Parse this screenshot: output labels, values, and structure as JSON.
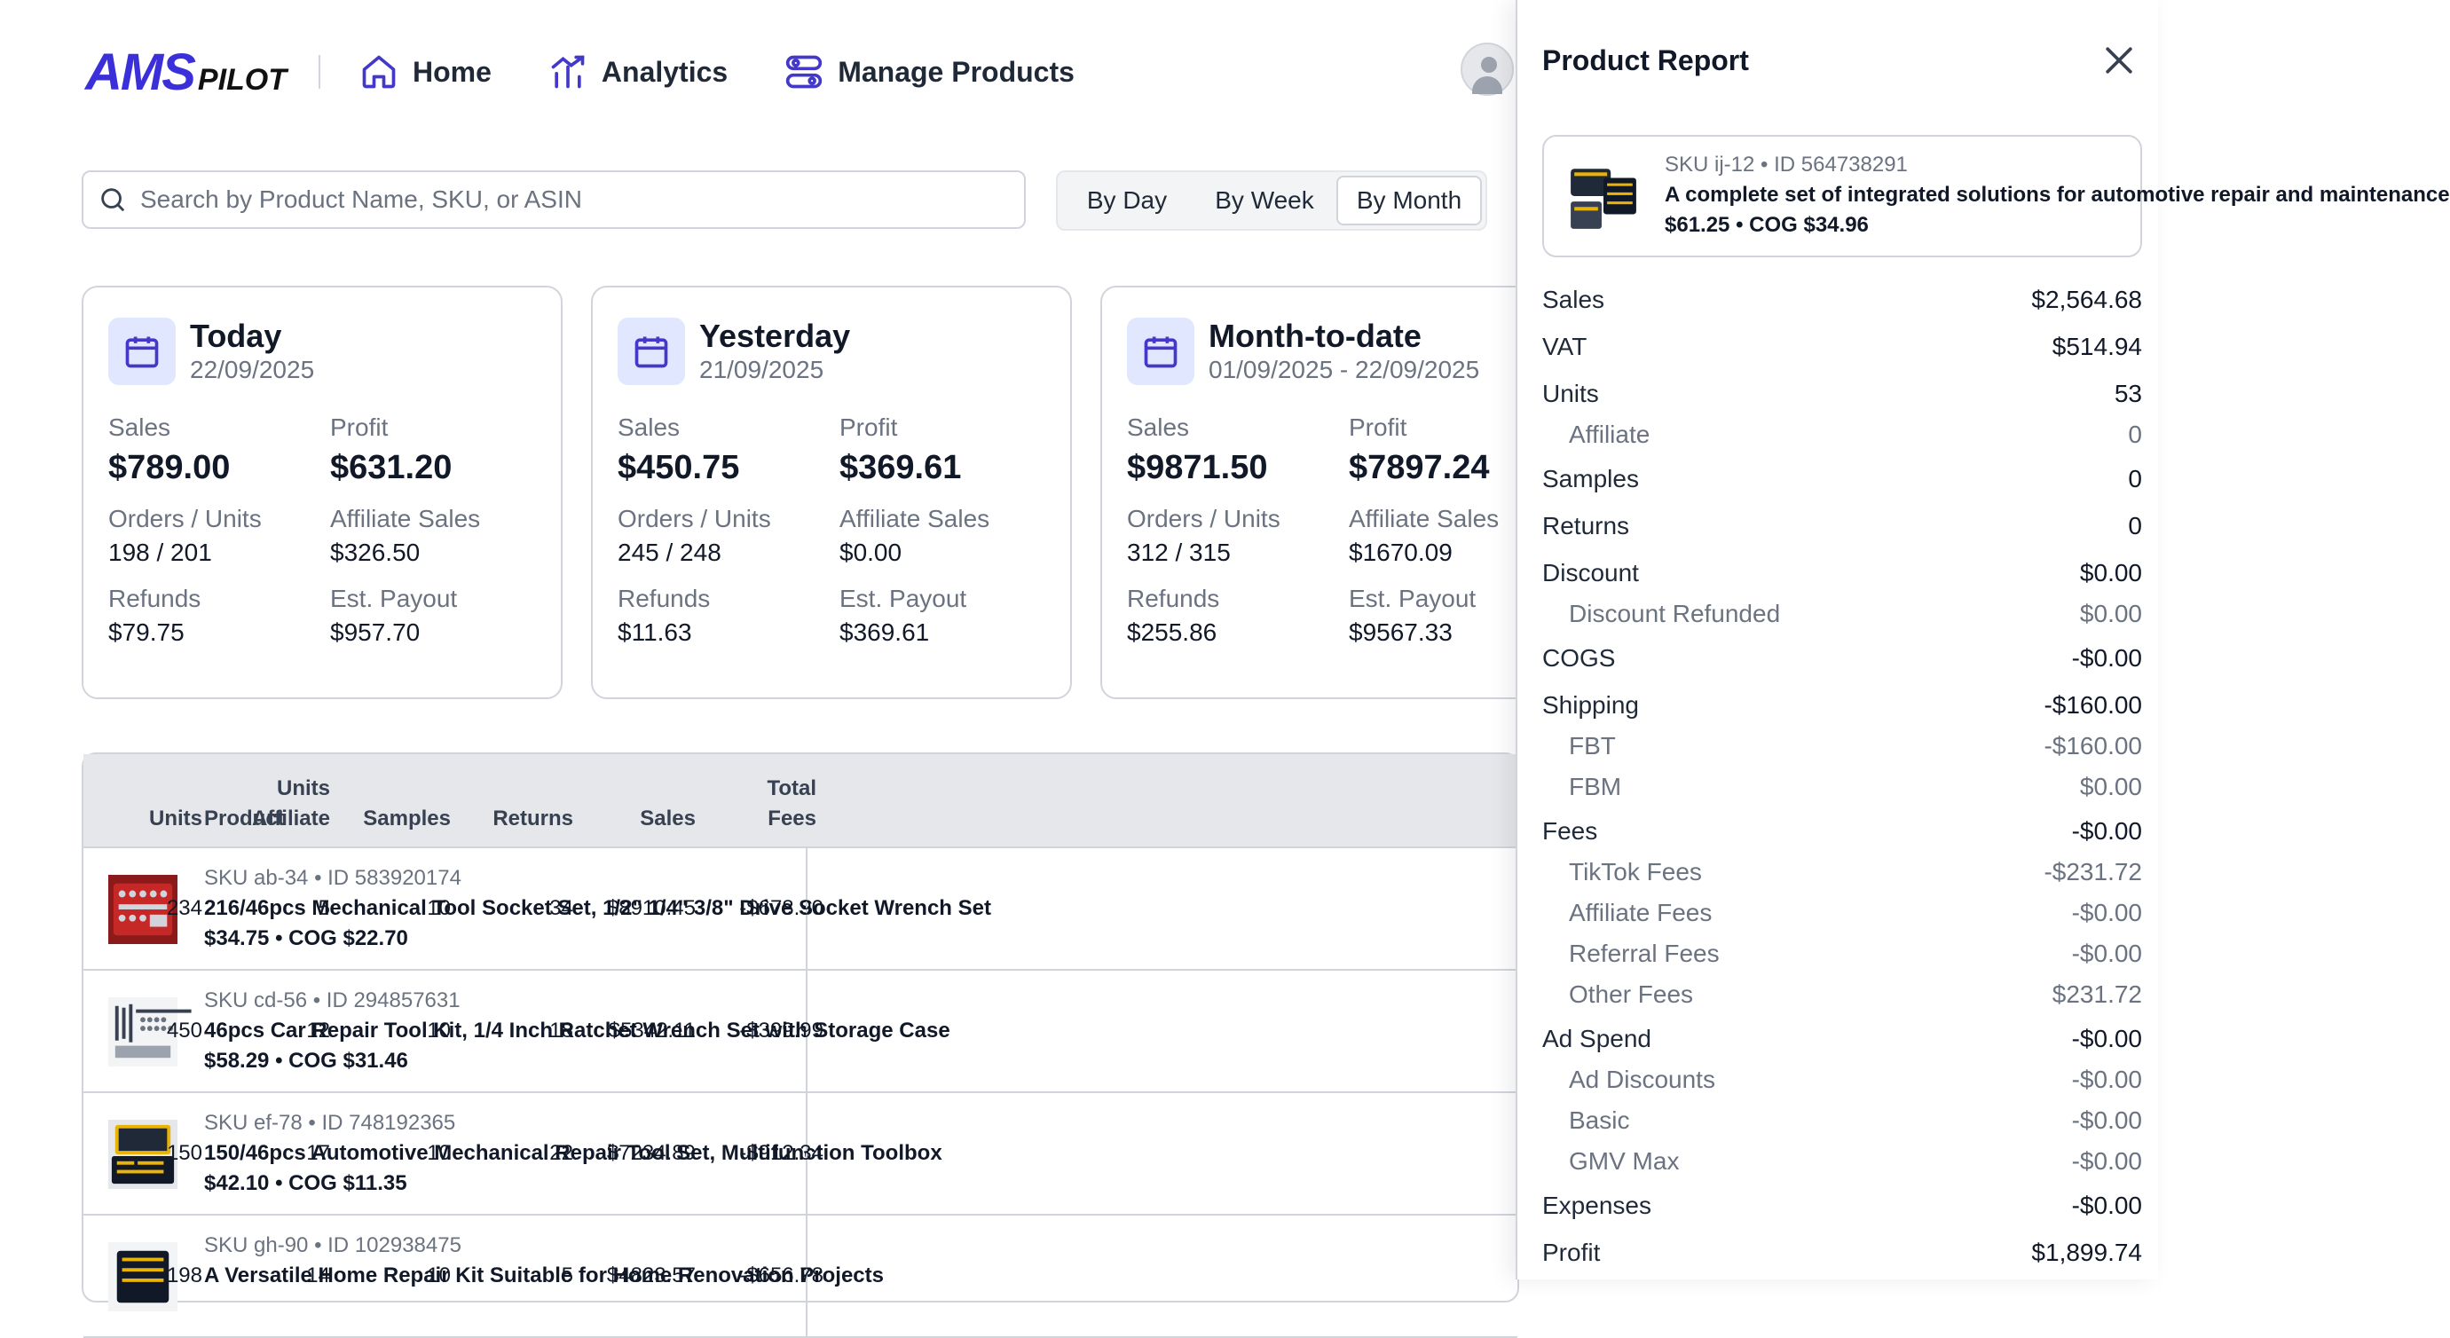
{
  "nav": {
    "logo_main": "AMS",
    "logo_sub": "PILOT",
    "home": "Home",
    "analytics": "Analytics",
    "manage_products": "Manage Products"
  },
  "search": {
    "placeholder": "Search by Product Name, SKU, or ASIN"
  },
  "period_toggle": {
    "options": [
      "By Day",
      "By Week",
      "By Month"
    ],
    "selected": "By Month"
  },
  "cards": [
    {
      "title": "Today",
      "date": "22/09/2025",
      "sales_label": "Sales",
      "sales": "$789.00",
      "profit_label": "Profit",
      "profit": "$631.20",
      "orders_label": "Orders / Units",
      "orders": "198 / 201",
      "affiliate_label": "Affiliate Sales",
      "affiliate": "$326.50",
      "refunds_label": "Refunds",
      "refunds": "$79.75",
      "payout_label": "Est. Payout",
      "payout": "$957.70"
    },
    {
      "title": "Yesterday",
      "date": "21/09/2025",
      "sales_label": "Sales",
      "sales": "$450.75",
      "profit_label": "Profit",
      "profit": "$369.61",
      "orders_label": "Orders / Units",
      "orders": "245 / 248",
      "affiliate_label": "Affiliate Sales",
      "affiliate": "$0.00",
      "refunds_label": "Refunds",
      "refunds": "$11.63",
      "payout_label": "Est. Payout",
      "payout": "$369.61"
    },
    {
      "title": "Month-to-date",
      "date": "01/09/2025 - 22/09/2025",
      "sales_label": "Sales",
      "sales": "$9871.50",
      "profit_label": "Profit",
      "profit": "$7897.24",
      "orders_label": "Orders / Units",
      "orders": "312 / 315",
      "affiliate_label": "Affiliate Sales",
      "affiliate": "$1670.09",
      "refunds_label": "Refunds",
      "refunds": "$255.86",
      "payout_label": "Est. Payout",
      "payout": "$9567.33"
    }
  ],
  "table": {
    "headers": {
      "product": "Product",
      "units": "Units",
      "units_affiliate_1": "Units",
      "units_affiliate_2": "Affiliate",
      "samples": "Samples",
      "returns": "Returns",
      "sales": "Sales",
      "total_fees_1": "Total",
      "total_fees_2": "Fees"
    },
    "rows": [
      {
        "sku": "SKU ab-34 • ID 583920174",
        "name": "216/46pcs Mechanical Tool Socket Set, 1/2\" 1/4\" 3/8\" Drive Socket Wrench Set",
        "price": "$34.75 • COG $22.70",
        "units": "234",
        "units_affiliate": "5",
        "samples": "10",
        "returns": "34",
        "sales": "$8910.45",
        "total_fees": "-$678.90"
      },
      {
        "sku": "SKU cd-56 • ID 294857631",
        "name": "46pcs Car Repair Tool Kit, 1/4 Inch Ratchet Wrench Set with Storage Case",
        "price": "$58.29 • COG $31.46",
        "units": "450",
        "units_affiliate": "12",
        "samples": "10",
        "returns": "18",
        "sales": "$5342.11",
        "total_fees": "-$399.99"
      },
      {
        "sku": "SKU ef-78 • ID 748192365",
        "name": "150/46pcs Automotive Mechanical Repair Tool Set, Multifunction Toolbox",
        "price": "$42.10 • COG $11.35",
        "units": "150",
        "units_affiliate": "17",
        "samples": "10",
        "returns": "22",
        "sales": "$7234.89",
        "total_fees": "-$912.34"
      },
      {
        "sku": "SKU gh-90 • ID 102938475",
        "name": "A Versatile Home Repair Kit Suitable for Home Renovation Projects",
        "price": "",
        "units": "198",
        "units_affiliate": "14",
        "samples": "10",
        "returns": "5",
        "sales": "$4823.57",
        "total_fees": "-$656.78"
      }
    ]
  },
  "report": {
    "title": "Product Report",
    "product": {
      "sku": "SKU ij-12 • ID 564738291",
      "name": "A complete set of integrated solutions for automotive repair and maintenance",
      "price": "$61.25 • COG $34.96"
    },
    "rows": [
      {
        "label": "Sales",
        "value": "$2,564.68",
        "level": "main"
      },
      {
        "label": "VAT",
        "value": "$514.94",
        "level": "main"
      },
      {
        "label": "Units",
        "value": "53",
        "level": "main"
      },
      {
        "label": "Affiliate",
        "value": "0",
        "level": "sub"
      },
      {
        "label": "Samples",
        "value": "0",
        "level": "main"
      },
      {
        "label": "Returns",
        "value": "0",
        "level": "main"
      },
      {
        "label": "Discount",
        "value": "$0.00",
        "level": "main"
      },
      {
        "label": "Discount Refunded",
        "value": "$0.00",
        "level": "sub"
      },
      {
        "label": "COGS",
        "value": "-$0.00",
        "level": "main"
      },
      {
        "label": "Shipping",
        "value": "-$160.00",
        "level": "main"
      },
      {
        "label": "FBT",
        "value": "-$160.00",
        "level": "sub"
      },
      {
        "label": "FBM",
        "value": "$0.00",
        "level": "sub"
      },
      {
        "label": "Fees",
        "value": "-$0.00",
        "level": "main"
      },
      {
        "label": "TikTok Fees",
        "value": "-$231.72",
        "level": "sub"
      },
      {
        "label": "Affiliate Fees",
        "value": "-$0.00",
        "level": "sub"
      },
      {
        "label": "Referral Fees",
        "value": "-$0.00",
        "level": "sub"
      },
      {
        "label": "Other Fees",
        "value": "$231.72",
        "level": "sub"
      },
      {
        "label": "Ad Spend",
        "value": "-$0.00",
        "level": "main"
      },
      {
        "label": "Ad Discounts",
        "value": "-$0.00",
        "level": "sub"
      },
      {
        "label": "Basic",
        "value": "-$0.00",
        "level": "sub"
      },
      {
        "label": "GMV Max",
        "value": "-$0.00",
        "level": "sub"
      },
      {
        "label": "Expenses",
        "value": "-$0.00",
        "level": "main"
      },
      {
        "label": "Profit",
        "value": "$1,899.74",
        "level": "main"
      }
    ]
  },
  "colors": {
    "accent": "#4338ca",
    "accent_bg": "#e0e7ff",
    "border": "#d1d5db",
    "muted": "#6b7280"
  }
}
